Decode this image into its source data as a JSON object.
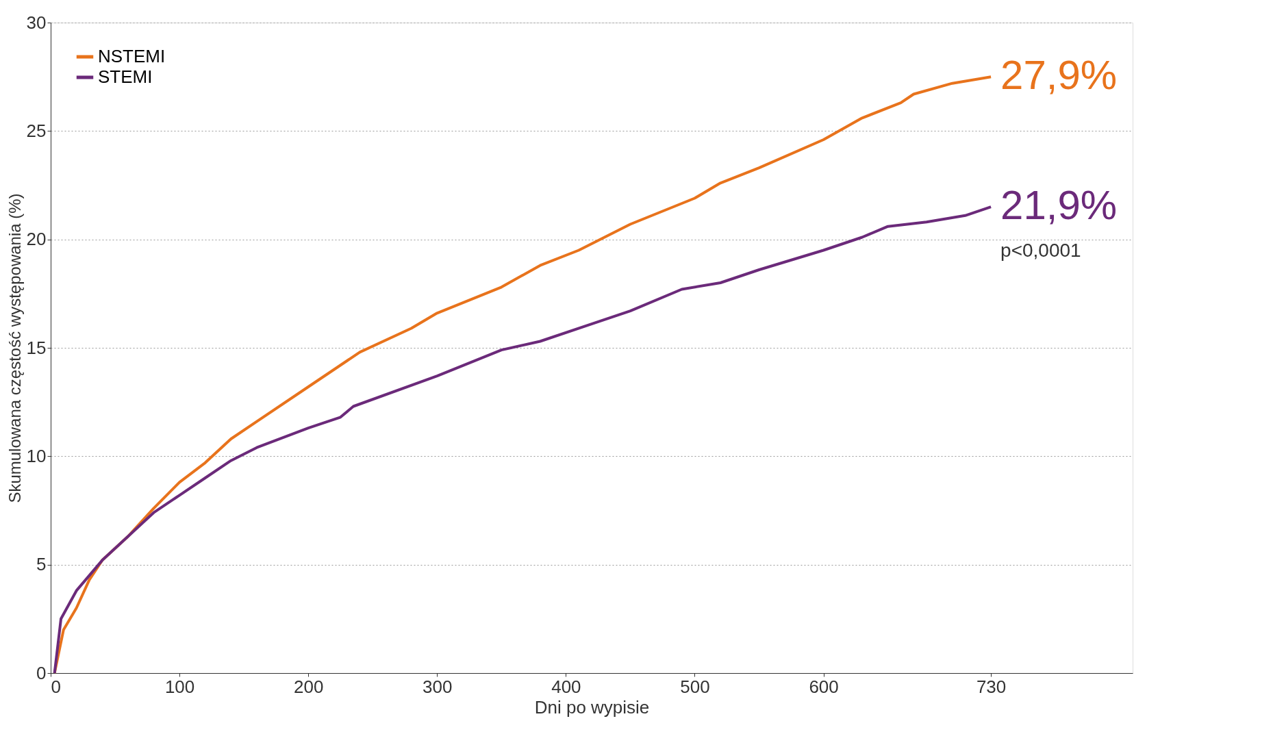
{
  "chart_data": {
    "type": "line",
    "xlabel": "Dni po wypisie",
    "ylabel": "Skumulowana częstość występowania (%)",
    "xlim": [
      0,
      840
    ],
    "xticks": [
      0,
      100,
      200,
      300,
      400,
      500,
      600,
      730
    ],
    "ylim": [
      0,
      30
    ],
    "yticks": [
      0,
      5,
      10,
      15,
      20,
      25,
      30
    ],
    "grid": "y",
    "legend": "top left",
    "line_style": "solid",
    "marker": "none",
    "series": [
      {
        "name": "NSTEMI",
        "color": "#e8731c",
        "x": [
          3,
          10,
          20,
          30,
          40,
          60,
          80,
          100,
          120,
          140,
          160,
          200,
          240,
          280,
          300,
          350,
          380,
          410,
          450,
          500,
          520,
          550,
          600,
          630,
          660,
          670,
          700,
          730
        ],
        "values": [
          0,
          2,
          3,
          4.3,
          5.2,
          6.3,
          7.6,
          8.8,
          9.7,
          10.8,
          11.6,
          13.2,
          14.8,
          15.9,
          16.6,
          17.8,
          18.8,
          19.5,
          20.7,
          21.9,
          22.6,
          23.3,
          24.6,
          25.6,
          26.3,
          26.7,
          27.2,
          27.5
        ]
      },
      {
        "name": "STEMI",
        "color": "#6b2a7a",
        "x": [
          3,
          8,
          20,
          40,
          60,
          80,
          100,
          120,
          140,
          160,
          200,
          225,
          235,
          300,
          350,
          380,
          420,
          450,
          490,
          520,
          550,
          600,
          630,
          650,
          680,
          710,
          730
        ],
        "values": [
          0,
          2.5,
          3.8,
          5.2,
          6.3,
          7.4,
          8.2,
          9,
          9.8,
          10.4,
          11.3,
          11.8,
          12.3,
          13.7,
          14.9,
          15.3,
          16.1,
          16.7,
          17.7,
          18,
          18.6,
          19.5,
          20.1,
          20.6,
          20.8,
          21.1,
          21.5
        ]
      }
    ],
    "annotations": [
      "27,9%",
      "21,9%",
      "p<0,0001"
    ]
  }
}
